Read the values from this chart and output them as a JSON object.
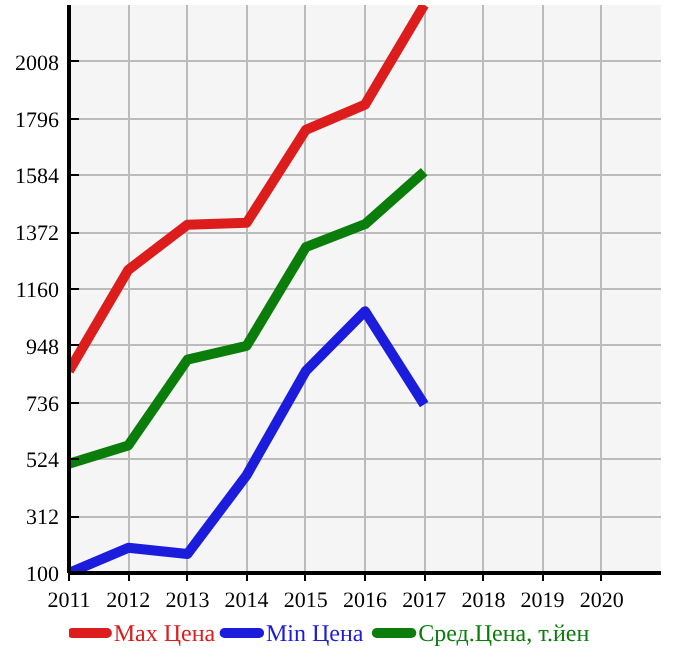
{
  "chart_data": {
    "type": "line",
    "x": [
      2011,
      2012,
      2013,
      2014,
      2015,
      2016,
      2017
    ],
    "series": [
      {
        "name": "Max Цена",
        "color": "#dd1c1c",
        "values": [
          854,
          1231,
          1400,
          1407,
          1754,
          1848,
          2220
        ]
      },
      {
        "name": "Min Цена",
        "color": "#1c1cdd",
        "values": [
          100,
          194,
          171,
          465,
          854,
          1077,
          729
        ]
      },
      {
        "name": "Сред.Цена, т.йен",
        "color": "#0a7d0a",
        "values": [
          508,
          576,
          896,
          948,
          1316,
          1402,
          1598
        ]
      }
    ],
    "xlim": [
      2011,
      2021
    ],
    "xticks": [
      2011,
      2012,
      2013,
      2014,
      2015,
      2016,
      2017,
      2018,
      2019,
      2020
    ],
    "ylim": [
      100,
      2220
    ],
    "yticks": [
      100,
      312,
      524,
      736,
      948,
      1160,
      1372,
      1584,
      1796,
      2008
    ],
    "grid": true,
    "legend": "bottom",
    "marker": "none",
    "line_style": "solid"
  }
}
